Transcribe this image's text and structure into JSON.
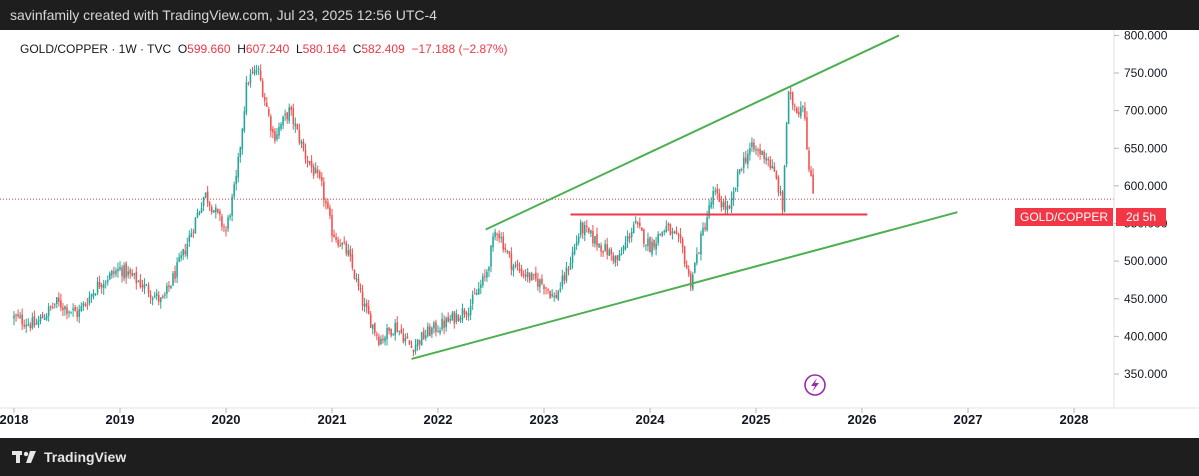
{
  "header": {
    "credit": "savinfamily created with TradingView.com, Jul 23, 2025 12:56 UTC-4"
  },
  "legend": {
    "symbol": "GOLD/COPPER · 1W · TVC",
    "open_label": "O",
    "open": "599.660",
    "high_label": "H",
    "high": "607.240",
    "low_label": "L",
    "low": "580.164",
    "close_label": "C",
    "close": "582.409",
    "change": "−17.188 (−2.87%)"
  },
  "price_tag": {
    "label": "GOLD/COPPER",
    "countdown": "2d 5h"
  },
  "footer": {
    "brand": "TradingView"
  },
  "colors": {
    "up": "#26a69a",
    "down": "#ef5350",
    "channel": "#4caf50",
    "resistance": "#f23645",
    "last_price": "#f23645",
    "watermark": "#9c27b0"
  },
  "chart_data": {
    "type": "candlestick",
    "title": "GOLD/COPPER · 1W · TVC",
    "x_ticks": [
      "2018",
      "2019",
      "2020",
      "2021",
      "2022",
      "2023",
      "2024",
      "2025",
      "2026",
      "2027",
      "2028"
    ],
    "y_ticks": [
      "350.000",
      "400.000",
      "450.000",
      "500.000",
      "550.000",
      "600.000",
      "650.000",
      "700.000",
      "750.000",
      "800.000"
    ],
    "ylim": [
      330,
      825
    ],
    "xlim": [
      2018.0,
      2028.7
    ],
    "last_price": 582.409,
    "grid": false,
    "series": [
      {
        "kind": "approx_weekly_close",
        "points": [
          [
            2018.0,
            425
          ],
          [
            2018.2,
            415
          ],
          [
            2018.4,
            445
          ],
          [
            2018.6,
            430
          ],
          [
            2018.8,
            470
          ],
          [
            2019.0,
            490
          ],
          [
            2019.2,
            470
          ],
          [
            2019.4,
            445
          ],
          [
            2019.6,
            510
          ],
          [
            2019.8,
            590
          ],
          [
            2020.0,
            540
          ],
          [
            2020.1,
            610
          ],
          [
            2020.2,
            740
          ],
          [
            2020.3,
            755
          ],
          [
            2020.45,
            665
          ],
          [
            2020.6,
            700
          ],
          [
            2020.75,
            640
          ],
          [
            2020.9,
            600
          ],
          [
            2021.0,
            540
          ],
          [
            2021.15,
            510
          ],
          [
            2021.3,
            440
          ],
          [
            2021.45,
            395
          ],
          [
            2021.6,
            415
          ],
          [
            2021.75,
            385
          ],
          [
            2021.9,
            405
          ],
          [
            2022.1,
            420
          ],
          [
            2022.3,
            440
          ],
          [
            2022.45,
            480
          ],
          [
            2022.55,
            545
          ],
          [
            2022.7,
            495
          ],
          [
            2022.9,
            475
          ],
          [
            2023.0,
            470
          ],
          [
            2023.1,
            450
          ],
          [
            2023.2,
            480
          ],
          [
            2023.35,
            545
          ],
          [
            2023.5,
            525
          ],
          [
            2023.7,
            500
          ],
          [
            2023.85,
            550
          ],
          [
            2024.0,
            520
          ],
          [
            2024.15,
            545
          ],
          [
            2024.3,
            520
          ],
          [
            2024.38,
            470
          ],
          [
            2024.5,
            540
          ],
          [
            2024.6,
            590
          ],
          [
            2024.75,
            565
          ],
          [
            2024.85,
            625
          ],
          [
            2024.95,
            650
          ],
          [
            2025.1,
            640
          ],
          [
            2025.2,
            605
          ],
          [
            2025.25,
            570
          ],
          [
            2025.3,
            720
          ],
          [
            2025.4,
            700
          ],
          [
            2025.45,
            715
          ],
          [
            2025.5,
            620
          ],
          [
            2025.55,
            582
          ]
        ]
      }
    ],
    "annotations": [
      {
        "type": "trendline",
        "name": "upper-channel",
        "from": [
          2022.45,
          542
        ],
        "to": [
          2026.35,
          800
        ]
      },
      {
        "type": "trendline",
        "name": "lower-channel",
        "from": [
          2021.75,
          370
        ],
        "to": [
          2026.9,
          565
        ]
      },
      {
        "type": "horizontal_segment",
        "name": "resistance",
        "from": [
          2023.25,
          562
        ],
        "to": [
          2026.05,
          562
        ]
      }
    ]
  }
}
